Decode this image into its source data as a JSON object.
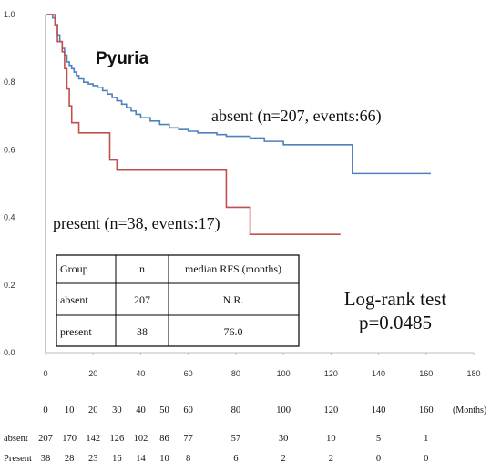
{
  "chart_data": {
    "type": "line",
    "subtype": "kaplan-meier",
    "title": "Pyuria",
    "xlabel": "",
    "ylabel": "",
    "xlim": [
      0,
      180
    ],
    "ylim": [
      0.0,
      1.0
    ],
    "x_ticks": [
      0,
      20,
      40,
      60,
      80,
      100,
      120,
      140,
      160,
      180
    ],
    "y_ticks": [
      0.0,
      0.2,
      0.4,
      0.6,
      0.8,
      1.0
    ],
    "y_tick_labels": [
      "0.0",
      "0.2",
      "0.4",
      "0.6",
      "0.8",
      "1.0"
    ],
    "grid": false,
    "series": [
      {
        "name": "absent (n=207, events:66)",
        "color": "#4f81bd",
        "x": [
          0,
          3,
          4,
          5,
          6,
          7,
          8,
          9,
          10,
          11,
          12,
          13,
          14,
          16,
          18,
          20,
          22,
          24,
          26,
          28,
          30,
          32,
          34,
          36,
          38,
          40,
          44,
          48,
          52,
          56,
          60,
          64,
          68,
          72,
          76,
          80,
          86,
          92,
          100,
          110,
          120,
          129,
          140,
          150,
          162
        ],
        "y": [
          1.0,
          0.99,
          0.97,
          0.94,
          0.92,
          0.9,
          0.88,
          0.86,
          0.85,
          0.84,
          0.83,
          0.82,
          0.81,
          0.8,
          0.795,
          0.79,
          0.785,
          0.775,
          0.765,
          0.755,
          0.745,
          0.735,
          0.725,
          0.715,
          0.705,
          0.695,
          0.685,
          0.675,
          0.665,
          0.66,
          0.655,
          0.65,
          0.65,
          0.645,
          0.64,
          0.64,
          0.635,
          0.625,
          0.615,
          0.615,
          0.615,
          0.53,
          0.53,
          0.53,
          0.53
        ]
      },
      {
        "name": "present (n=38, events:17)",
        "color": "#c0504d",
        "x": [
          0,
          4,
          5,
          7,
          8,
          9,
          10,
          11,
          14,
          16,
          27,
          30,
          37,
          48,
          56,
          76,
          86,
          100,
          115,
          124
        ],
        "y": [
          1.0,
          0.97,
          0.92,
          0.89,
          0.84,
          0.78,
          0.73,
          0.68,
          0.65,
          0.65,
          0.57,
          0.54,
          0.54,
          0.54,
          0.54,
          0.43,
          0.35,
          0.35,
          0.35,
          0.35
        ]
      }
    ],
    "annotations": {
      "absent_label": "absent (n=207, events:66)",
      "present_label": "present (n=38, events:17)",
      "logrank_line1": "Log-rank test",
      "logrank_line2": "p=0.0485"
    },
    "summary_table": {
      "headers": [
        "Group",
        "n",
        "median RFS (months)"
      ],
      "rows": [
        [
          "absent",
          "207",
          "N.R."
        ],
        [
          "present",
          "38",
          "76.0"
        ]
      ]
    },
    "risk_table": {
      "times": [
        "0",
        "10",
        "20",
        "30",
        "40",
        "50",
        "60",
        "80",
        "100",
        "120",
        "140",
        "160"
      ],
      "unit": "(Months)",
      "rows": [
        {
          "label": "absent",
          "values": [
            "207",
            "170",
            "142",
            "126",
            "102",
            "86",
            "77",
            "57",
            "30",
            "10",
            "5",
            "1"
          ]
        },
        {
          "label": "Present",
          "values": [
            "38",
            "28",
            "23",
            "16",
            "14",
            "10",
            "8",
            "6",
            "2",
            "2",
            "0",
            "0"
          ]
        }
      ]
    }
  }
}
